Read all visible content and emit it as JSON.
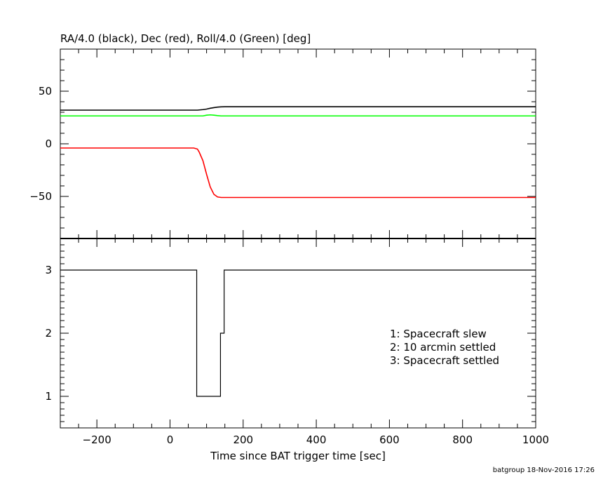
{
  "chart_data": [
    {
      "type": "line",
      "title": "RA/4.0 (black), Dec (red), Roll/4.0 (Green) [deg]",
      "xlim": [
        -300,
        1000
      ],
      "ylim": [
        -90,
        90
      ],
      "yticks": [
        50,
        0,
        -50
      ],
      "ytick_labels": [
        "50",
        "0",
        "−50"
      ],
      "colors": {
        "ra": "#000000",
        "dec": "#ff0000",
        "roll": "#00ff00"
      },
      "series": [
        {
          "key": "ra",
          "x": [
            -300,
            75,
            90,
            100,
            110,
            120,
            130,
            140,
            150,
            1000
          ],
          "y": [
            32,
            32,
            32.5,
            33,
            33.8,
            34.4,
            34.9,
            35.1,
            35.2,
            35.2
          ]
        },
        {
          "key": "roll",
          "x": [
            -300,
            90,
            100,
            110,
            120,
            130,
            140,
            1000
          ],
          "y": [
            26.5,
            26.5,
            27.2,
            27.5,
            27.2,
            26.8,
            26.5,
            26.5
          ]
        },
        {
          "key": "dec",
          "x": [
            -300,
            65,
            75,
            80,
            90,
            100,
            110,
            120,
            130,
            140,
            150,
            1000
          ],
          "y": [
            -4,
            -4,
            -5,
            -8,
            -16,
            -29,
            -41,
            -48,
            -50.5,
            -51,
            -51,
            -51
          ]
        }
      ]
    },
    {
      "type": "line",
      "xlim": [
        -300,
        1000
      ],
      "ylim": [
        0.5,
        3.5
      ],
      "yticks": [
        1,
        2,
        3
      ],
      "ytick_labels": [
        "1",
        "2",
        "3"
      ],
      "xlabel": "Time since BAT trigger time [sec]",
      "xticks": [
        -200,
        0,
        200,
        400,
        600,
        800,
        1000
      ],
      "xtick_labels": [
        "−200",
        "0",
        "200",
        "400",
        "600",
        "800",
        "1000"
      ],
      "step": {
        "x": [
          -300,
          73,
          73,
          138,
          138,
          148,
          148,
          1000
        ],
        "y": [
          3,
          3,
          1,
          1,
          2,
          2,
          3,
          3
        ]
      },
      "legend": [
        "1: Spacecraft slew",
        "2: 10 arcmin settled",
        "3: Spacecraft settled"
      ]
    }
  ],
  "footer": "batgroup 18-Nov-2016 17:26"
}
